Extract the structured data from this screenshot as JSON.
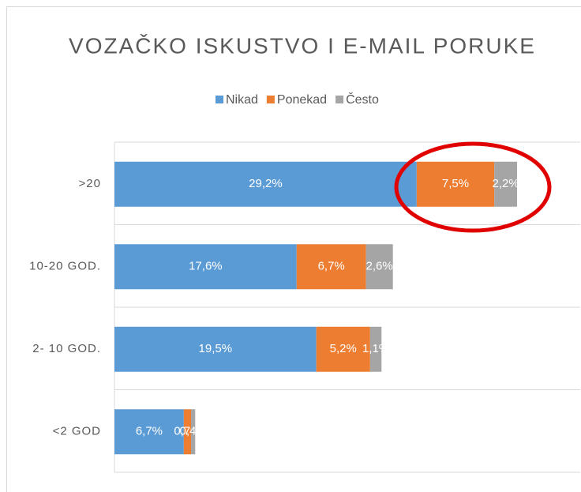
{
  "chart_data": {
    "type": "stacked-barh",
    "title": "VOZAČKO ISKUSTVO I E-MAIL PORUKE",
    "categories": [
      ">20",
      "10-20 GOD.",
      "2- 10 GOD.",
      "<2 GOD"
    ],
    "series": [
      {
        "name": "Nikad",
        "color": "#5b9bd5",
        "values": [
          29.2,
          17.6,
          19.5,
          6.7
        ],
        "value_labels": [
          "29,2%",
          "17,6%",
          "19,5%",
          "6,7%"
        ]
      },
      {
        "name": "Ponekad",
        "color": "#ed7d31",
        "values": [
          7.5,
          6.7,
          5.2,
          0.7
        ],
        "value_labels": [
          "7,5%",
          "6,7%",
          "5,2%",
          "0,7%"
        ]
      },
      {
        "name": "Često",
        "color": "#a5a5a5",
        "values": [
          2.2,
          2.6,
          1.1,
          0.4
        ],
        "value_labels": [
          "2,2%",
          "2,6%",
          "1,1%",
          "0,4%"
        ]
      }
    ],
    "xlim": [
      0,
      45
    ],
    "legend": "top"
  }
}
